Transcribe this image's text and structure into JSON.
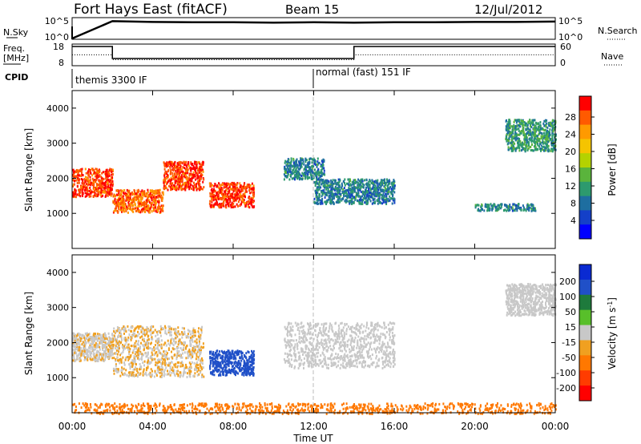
{
  "header": {
    "station": "Fort Hays East (fitACF)",
    "beam": "Beam 15",
    "date": "12/Jul/2012"
  },
  "top_panels": {
    "nsky_label": "N.Sky",
    "nsky_ticks": [
      "10^5",
      "10^0"
    ],
    "nsearch_label": "N.Search",
    "nsearch_ticks": [
      "10^5",
      "10^0"
    ],
    "freq_label": "Freq.",
    "freq_unit": "[MHz]",
    "freq_ticks": [
      "18",
      "8"
    ],
    "nave_label": "Nave",
    "nave_ticks": [
      "60",
      "0"
    ],
    "cpid_label": "CPID",
    "cpid_segments": [
      {
        "label": "themis 3300 IF",
        "start_hour": 0,
        "end_hour": 12
      },
      {
        "label": "normal (fast) 151 IF",
        "start_hour": 12,
        "end_hour": 24
      }
    ],
    "freq_profile": [
      [
        0,
        18
      ],
      [
        2,
        18
      ],
      [
        2,
        11.5
      ],
      [
        14,
        11.5
      ],
      [
        14,
        18
      ],
      [
        24,
        18
      ]
    ],
    "nave_profile": [
      [
        0,
        33
      ],
      [
        2,
        33
      ],
      [
        2,
        17
      ],
      [
        14,
        17
      ],
      [
        14,
        33
      ],
      [
        24,
        33
      ]
    ]
  },
  "power_panel": {
    "ylabel": "Slant Range [km]",
    "y_ticks": [
      "4000",
      "3000",
      "2000",
      "1000"
    ],
    "colorbar_label": "Power [dB]",
    "colorbar_ticks": [
      "28",
      "24",
      "20",
      "16",
      "12",
      "8",
      "4"
    ],
    "colorbar_colors": [
      "#ff0000",
      "#ff5a00",
      "#ff9a00",
      "#f5c400",
      "#b4d200",
      "#5ab43c",
      "#2d9a6e",
      "#1e6ea0",
      "#1440c8",
      "#0000ff"
    ]
  },
  "velocity_panel": {
    "ylabel": "Slant Range [km]",
    "y_ticks": [
      "4000",
      "3000",
      "2000",
      "1000"
    ],
    "colorbar_label": "Velocity [m s^-1]",
    "colorbar_ticks": [
      "200",
      "100",
      "50",
      "15",
      "-15",
      "-50",
      "-100",
      "-200"
    ],
    "colorbar_colors": [
      "#0a2ad2",
      "#2050c8",
      "#1e7a3c",
      "#58bf2a",
      "#c8c8c8",
      "#f0a020",
      "#ff7800",
      "#ff3c00",
      "#ff0000"
    ]
  },
  "x_axis": {
    "label": "Time UT",
    "ticks": [
      "00:00",
      "04:00",
      "08:00",
      "12:00",
      "16:00",
      "20:00",
      "00:00"
    ]
  },
  "chart_data": [
    {
      "type": "line",
      "title": "N.Sky / N.Search",
      "x_range_hours": [
        0,
        24
      ],
      "series": [
        {
          "name": "N.Sky",
          "x": [
            0,
            2,
            4,
            6,
            8,
            10,
            12,
            14,
            16,
            18,
            20,
            22,
            24
          ],
          "values_log10": [
            0,
            4.5,
            4.3,
            4.2,
            4.2,
            4.1,
            4.2,
            4.1,
            4.2,
            4.2,
            4.3,
            4.3,
            4.4
          ]
        }
      ]
    },
    {
      "type": "line",
      "title": "Freq. [MHz] / Nave",
      "x_range_hours": [
        0,
        24
      ],
      "series": [
        {
          "name": "Freq.",
          "x": [
            0,
            2,
            2,
            14,
            14,
            24
          ],
          "values": [
            18,
            18,
            11.5,
            11.5,
            18,
            18
          ]
        },
        {
          "name": "Nave",
          "x": [
            0,
            2,
            2,
            14,
            14,
            24
          ],
          "values": [
            33,
            33,
            17,
            17,
            33,
            33
          ]
        }
      ]
    },
    {
      "type": "heatmap",
      "title": "Power [dB]",
      "x_range_hours": [
        0,
        24
      ],
      "ylim": [
        0,
        4500
      ],
      "echo_regions": [
        {
          "t_start": 0,
          "t_end": 2.0,
          "range_low": 1500,
          "range_high": 2300,
          "value": 28
        },
        {
          "t_start": 2.0,
          "t_end": 4.5,
          "range_low": 1050,
          "range_high": 1700,
          "value": 26
        },
        {
          "t_start": 4.5,
          "t_end": 6.5,
          "range_low": 1700,
          "range_high": 2500,
          "value": 28
        },
        {
          "t_start": 6.8,
          "t_end": 9.0,
          "range_low": 1200,
          "range_high": 1900,
          "value": 28
        },
        {
          "t_start": 10.5,
          "t_end": 12.5,
          "range_low": 2000,
          "range_high": 2600,
          "value": 8
        },
        {
          "t_start": 12.0,
          "t_end": 16.0,
          "range_low": 1300,
          "range_high": 2000,
          "value": 8
        },
        {
          "t_start": 20.0,
          "t_end": 23.0,
          "range_low": 1100,
          "range_high": 1300,
          "value": 8
        },
        {
          "t_start": 21.5,
          "t_end": 24.0,
          "range_low": 2800,
          "range_high": 3700,
          "value": 10
        }
      ]
    },
    {
      "type": "heatmap",
      "title": "Velocity [m s^-1]",
      "x_range_hours": [
        0,
        24
      ],
      "ylim": [
        0,
        4500
      ],
      "echo_regions": [
        {
          "t_start": 0,
          "t_end": 2.0,
          "range_low": 1500,
          "range_high": 2300,
          "value": -10
        },
        {
          "t_start": 2.0,
          "t_end": 6.5,
          "range_low": 1050,
          "range_high": 2500,
          "value": -15
        },
        {
          "t_start": 6.8,
          "t_end": 9.0,
          "range_low": 1100,
          "range_high": 1800,
          "value": 180
        },
        {
          "t_start": 10.5,
          "t_end": 16.0,
          "range_low": 1300,
          "range_high": 2600,
          "value": 0
        },
        {
          "t_start": 0,
          "t_end": 24.0,
          "range_low": 0,
          "range_high": 300,
          "value": -60
        },
        {
          "t_start": 21.5,
          "t_end": 24.0,
          "range_low": 2800,
          "range_high": 3700,
          "value": 0
        }
      ]
    }
  ]
}
